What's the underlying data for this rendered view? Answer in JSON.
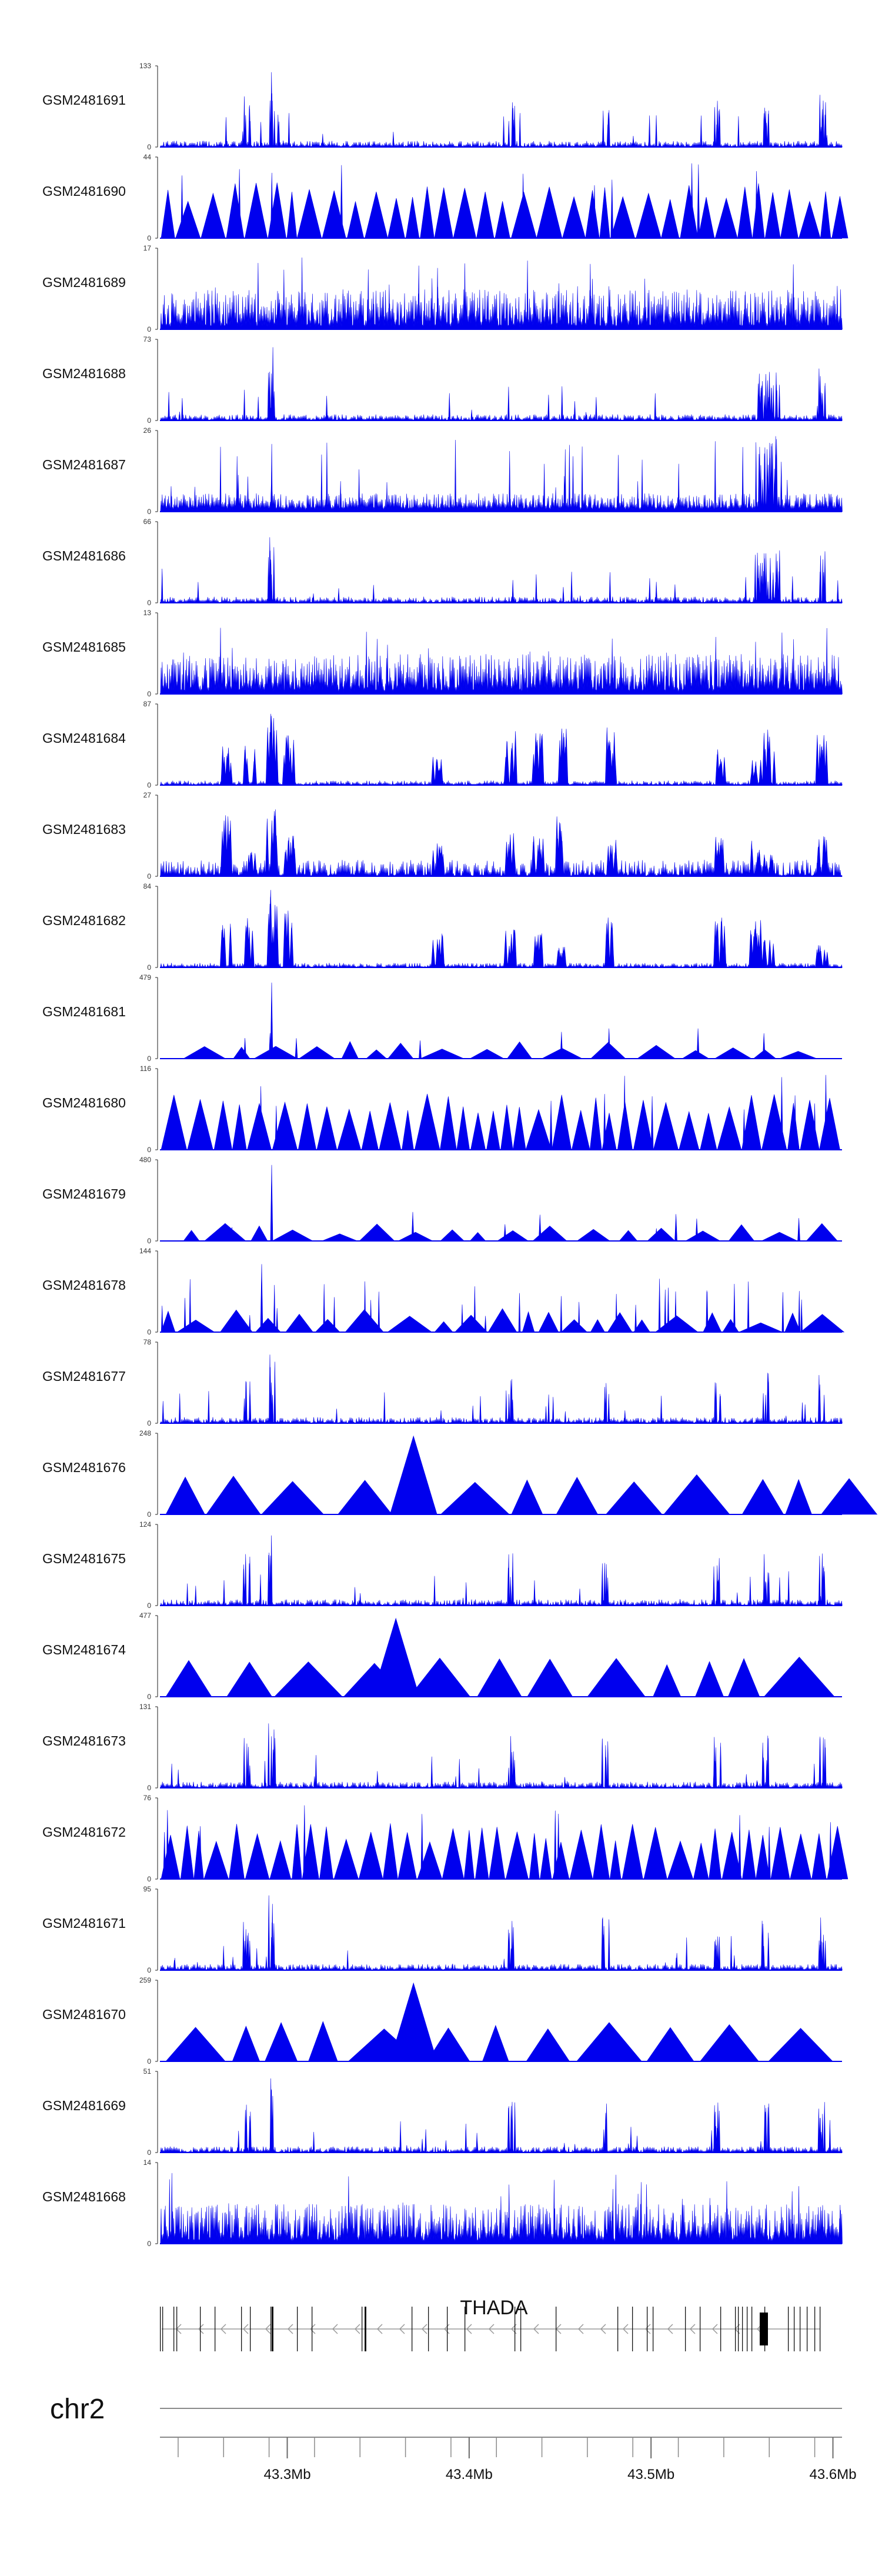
{
  "chart_data": {
    "type": "area",
    "title": "",
    "track_color": "#0000ee",
    "x_range_mb": [
      43.23,
      43.605
    ],
    "tracks": [
      {
        "name": "GSM2481691",
        "ymax": "133",
        "pattern": "sparse-peaks",
        "seed": 11
      },
      {
        "name": "GSM2481690",
        "ymax": "44",
        "pattern": "dense-triangles",
        "seed": 12
      },
      {
        "name": "GSM2481689",
        "ymax": "17",
        "pattern": "dense-noise",
        "seed": 13
      },
      {
        "name": "GSM2481688",
        "ymax": "73",
        "pattern": "peaks-right",
        "seed": 14
      },
      {
        "name": "GSM2481687",
        "ymax": "26",
        "pattern": "noise-right",
        "seed": 15
      },
      {
        "name": "GSM2481686",
        "ymax": "66",
        "pattern": "peaks-right",
        "seed": 16
      },
      {
        "name": "GSM2481685",
        "ymax": "13",
        "pattern": "dense-noise",
        "seed": 17
      },
      {
        "name": "GSM2481684",
        "ymax": "87",
        "pattern": "clustered",
        "seed": 18
      },
      {
        "name": "GSM2481683",
        "ymax": "27",
        "pattern": "clustered-noise",
        "seed": 19
      },
      {
        "name": "GSM2481682",
        "ymax": "84",
        "pattern": "clustered",
        "seed": 20
      },
      {
        "name": "GSM2481681",
        "ymax": "479",
        "pattern": "wide-triangles",
        "seed": 21
      },
      {
        "name": "GSM2481680",
        "ymax": "116",
        "pattern": "dense-triangles",
        "seed": 22
      },
      {
        "name": "GSM2481679",
        "ymax": "480",
        "pattern": "wide-triangles",
        "seed": 23
      },
      {
        "name": "GSM2481678",
        "ymax": "144",
        "pattern": "mixed-triangles",
        "seed": 24
      },
      {
        "name": "GSM2481677",
        "ymax": "78",
        "pattern": "sparse-peaks",
        "seed": 25
      },
      {
        "name": "GSM2481676",
        "ymax": "248",
        "pattern": "big-triangles",
        "seed": 26
      },
      {
        "name": "GSM2481675",
        "ymax": "124",
        "pattern": "sparse-peaks",
        "seed": 27
      },
      {
        "name": "GSM2481674",
        "ymax": "477",
        "pattern": "big-triangles",
        "seed": 28
      },
      {
        "name": "GSM2481673",
        "ymax": "131",
        "pattern": "sparse-peaks",
        "seed": 29
      },
      {
        "name": "GSM2481672",
        "ymax": "76",
        "pattern": "dense-triangles",
        "seed": 30
      },
      {
        "name": "GSM2481671",
        "ymax": "95",
        "pattern": "sparse-peaks",
        "seed": 31
      },
      {
        "name": "GSM2481670",
        "ymax": "259",
        "pattern": "big-triangles",
        "seed": 32
      },
      {
        "name": "GSM2481669",
        "ymax": "51",
        "pattern": "sparse-peaks",
        "seed": 33
      },
      {
        "name": "GSM2481668",
        "ymax": "14",
        "pattern": "dense-noise",
        "seed": 34
      }
    ],
    "y_min_label": "0",
    "gene": {
      "name": "THADA",
      "strand": "-"
    },
    "chromosome": "chr2",
    "x_ticks": [
      {
        "value": 43.3,
        "label": "43.3Mb"
      },
      {
        "value": 43.4,
        "label": "43.4Mb"
      },
      {
        "value": 43.5,
        "label": "43.5Mb"
      },
      {
        "value": 43.6,
        "label": "43.6Mb"
      }
    ]
  }
}
